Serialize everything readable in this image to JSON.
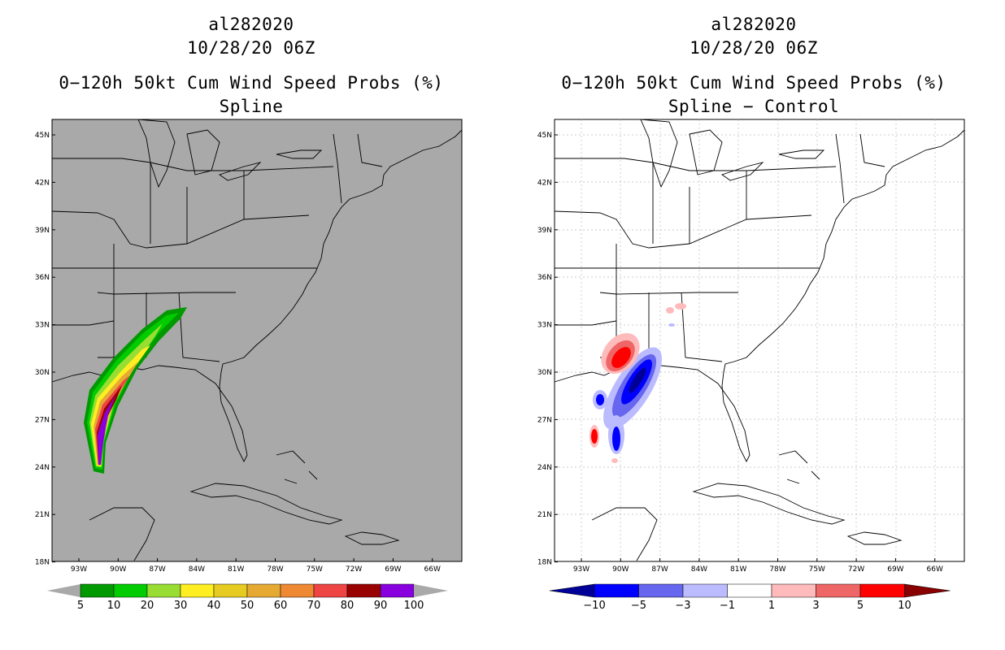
{
  "left": {
    "storm_id": "al282020",
    "datetime": "10/28/20 06Z",
    "product": "0−120h 50kt Cum Wind Speed Probs (%)",
    "subtitle": "Spline",
    "background_color": "#a9a9a9",
    "colorbar": {
      "colors": [
        "#009900",
        "#00cc00",
        "#99dd33",
        "#ffee22",
        "#e6cc22",
        "#e6aa33",
        "#ee8833",
        "#ee4444",
        "#990000",
        "#8800dd"
      ],
      "labels": [
        "5",
        "10",
        "20",
        "30",
        "40",
        "50",
        "60",
        "70",
        "80",
        "90",
        "100"
      ]
    }
  },
  "right": {
    "storm_id": "al282020",
    "datetime": "10/28/20 06Z",
    "product": "0−120h 50kt Cum Wind Speed Probs (%)",
    "subtitle": "Spline − Control",
    "background_color": "#ffffff",
    "colorbar": {
      "colors": [
        "#0000ff",
        "#6666ee",
        "#bbbbff",
        "#ffffff",
        "#ffbbbb",
        "#ee6666",
        "#ff0000"
      ],
      "end_low": "#000099",
      "end_high": "#880000",
      "labels": [
        "−10",
        "−5",
        "−3",
        "−1",
        "1",
        "3",
        "5",
        "10"
      ]
    }
  },
  "axes": {
    "lat_labels": [
      "45N",
      "42N",
      "39N",
      "36N",
      "33N",
      "30N",
      "27N",
      "24N",
      "21N",
      "18N"
    ],
    "lon_labels": [
      "93W",
      "90W",
      "87W",
      "84W",
      "81W",
      "78W",
      "75W",
      "72W",
      "69W",
      "66W"
    ]
  }
}
